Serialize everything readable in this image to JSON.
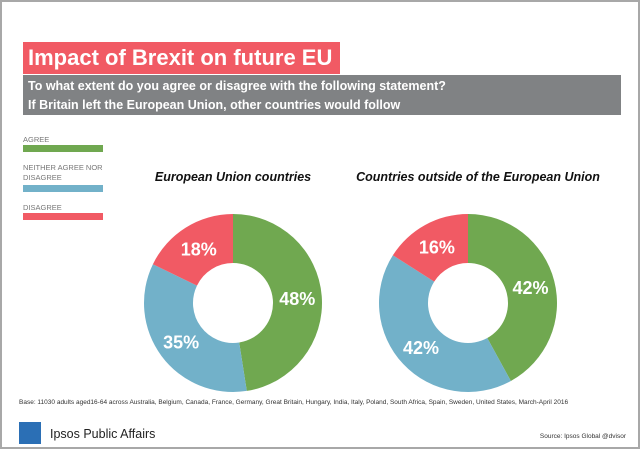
{
  "title": "Impact of Brexit on future EU",
  "subtitle": [
    "To what extent do you agree or disagree with the following statement?",
    "If Britain left the European Union, other countries would follow"
  ],
  "legend": [
    {
      "label": "AGREE",
      "color": "#70a850"
    },
    {
      "label": "NEITHER AGREE NOR DISAGREE",
      "color": "#72b1c9"
    },
    {
      "label": "DISAGREE",
      "color": "#f15a64"
    }
  ],
  "chart_data": [
    {
      "type": "pie",
      "variant": "donut",
      "title": "European Union countries",
      "categories": [
        "AGREE",
        "NEITHER AGREE NOR DISAGREE",
        "DISAGREE"
      ],
      "values": [
        48,
        35,
        18
      ],
      "labels": [
        "48%",
        "35%",
        "18%"
      ]
    },
    {
      "type": "pie",
      "variant": "donut",
      "title": "Countries outside of the European Union",
      "categories": [
        "AGREE",
        "NEITHER AGREE NOR DISAGREE",
        "DISAGREE"
      ],
      "values": [
        42,
        42,
        16
      ],
      "labels": [
        "42%",
        "42%",
        "16%"
      ]
    }
  ],
  "footer": {
    "base": "Base: 11030 adults aged16-64 across  Australia, Belgium, Canada, France, Germany, Great Britain, Hungary, India, Italy, Poland, South Africa, Spain, Sweden, United States, March-April 2016",
    "logo_text": "Ipsos",
    "brand": "Ipsos Public Affairs",
    "source": "Source: Ipsos Global @dvisor"
  }
}
